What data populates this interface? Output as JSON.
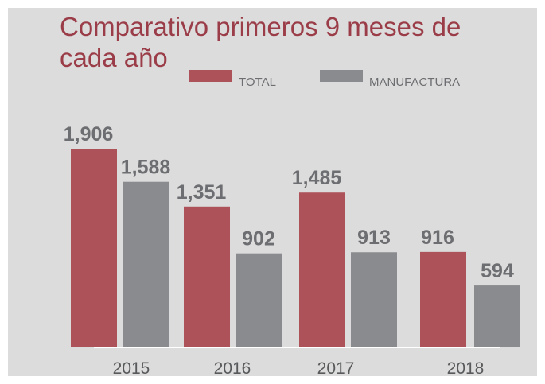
{
  "chart_data": {
    "type": "bar",
    "title_lines": [
      "Comparativo primeros 9 meses de",
      "cada año"
    ],
    "categories": [
      "2015",
      "2016",
      "2017",
      "2018"
    ],
    "series": [
      {
        "name": "TOTAL",
        "color": "#ae525a",
        "values": [
          1906,
          1351,
          1485,
          916
        ],
        "value_labels": [
          "1,906",
          "1,351",
          "1,485",
          "916"
        ]
      },
      {
        "name": "MANUFACTURA",
        "color": "#8a8b8e",
        "values": [
          1588,
          902,
          913,
          594
        ],
        "value_labels": [
          "1,588",
          "902",
          "913",
          "594"
        ]
      }
    ]
  }
}
